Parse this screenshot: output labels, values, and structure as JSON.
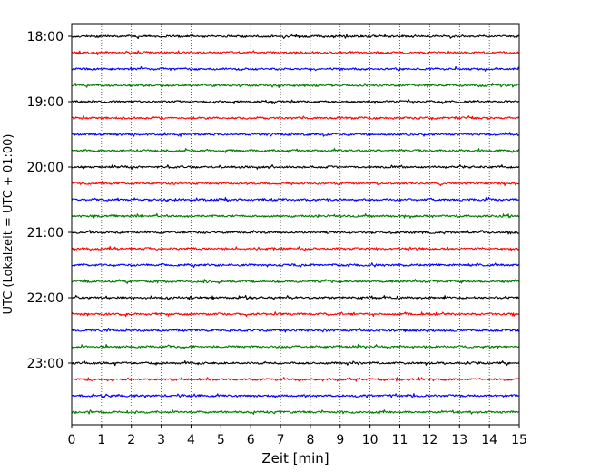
{
  "chart_data": {
    "type": "line",
    "title": "",
    "xlabel": "Zeit  [min]",
    "ylabel": "UTC (Lokalzeit = UTC + 01:00)",
    "xlim": [
      0,
      15
    ],
    "x_ticks": [
      "0",
      "1",
      "2",
      "3",
      "4",
      "5",
      "6",
      "7",
      "8",
      "9",
      "10",
      "11",
      "12",
      "13",
      "14",
      "15"
    ],
    "y_ticks": [
      "18:00",
      "19:00",
      "20:00",
      "21:00",
      "22:00",
      "23:00"
    ],
    "vertical_grid": "dotted",
    "trace_interval_min": 15,
    "trace_colors": [
      "#000000",
      "#ff0000",
      "#0000ff",
      "#007a00"
    ],
    "traces": [
      {
        "start": "18:00"
      },
      {
        "start": "18:15"
      },
      {
        "start": "18:30"
      },
      {
        "start": "18:45"
      },
      {
        "start": "19:00"
      },
      {
        "start": "19:15"
      },
      {
        "start": "19:30"
      },
      {
        "start": "19:45"
      },
      {
        "start": "20:00"
      },
      {
        "start": "20:15"
      },
      {
        "start": "20:30"
      },
      {
        "start": "20:45"
      },
      {
        "start": "21:00"
      },
      {
        "start": "21:15"
      },
      {
        "start": "21:30"
      },
      {
        "start": "21:45"
      },
      {
        "start": "22:00"
      },
      {
        "start": "22:15"
      },
      {
        "start": "22:30"
      },
      {
        "start": "22:45"
      },
      {
        "start": "23:00"
      },
      {
        "start": "23:15"
      },
      {
        "start": "23:30"
      },
      {
        "start": "23:45"
      }
    ]
  }
}
